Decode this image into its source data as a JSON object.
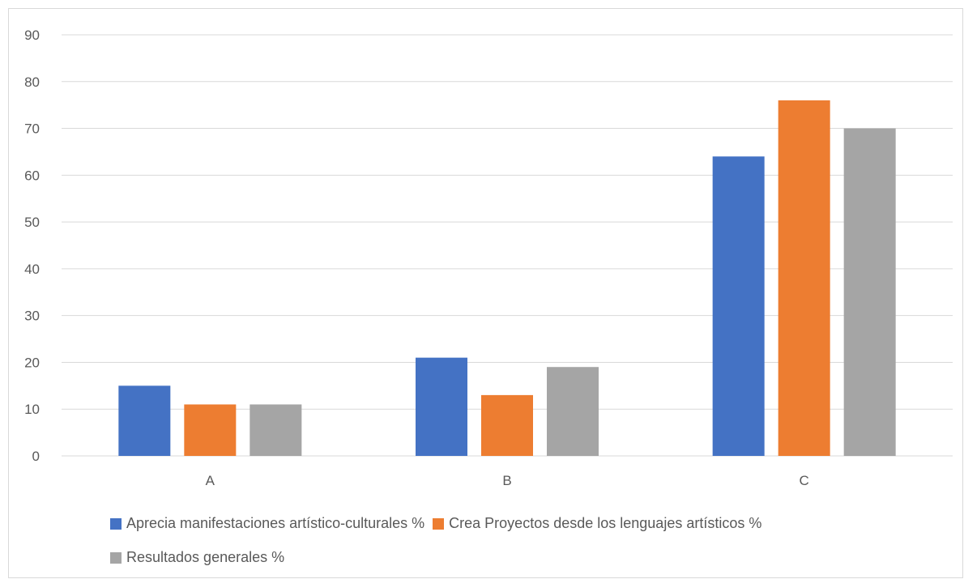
{
  "chart_data": {
    "type": "bar",
    "title": "",
    "xlabel": "",
    "ylabel": "",
    "categories": [
      "A",
      "B",
      "C"
    ],
    "series": [
      {
        "name": "Aprecia manifestaciones artístico-culturales %",
        "color": "#4472C4",
        "values": [
          15,
          21,
          64
        ]
      },
      {
        "name": "Crea Proyectos desde los lenguajes artísticos %",
        "color": "#ED7D31",
        "values": [
          11,
          13,
          76
        ]
      },
      {
        "name": "Resultados generales %",
        "color": "#A5A5A5",
        "values": [
          11,
          19,
          70
        ]
      }
    ],
    "ylim": [
      0,
      90
    ],
    "yticks": [
      0,
      10,
      20,
      30,
      40,
      50,
      60,
      70,
      80,
      90
    ],
    "grid": true,
    "legend_position": "bottom"
  }
}
